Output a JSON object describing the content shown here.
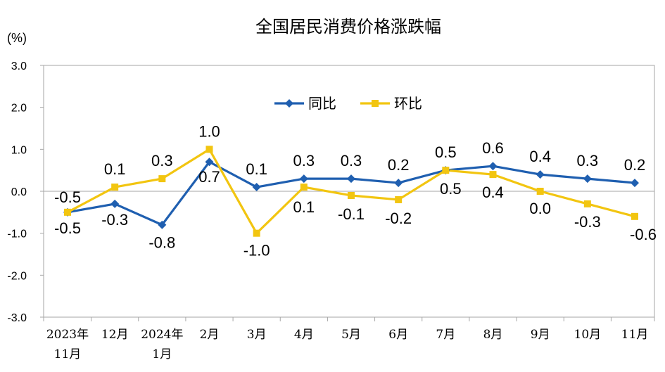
{
  "chart_data": {
    "type": "line",
    "title": "全国居民消费价格涨跌幅",
    "ylabel": "(%)",
    "xlabel": "",
    "ylim": [
      -3.0,
      3.0
    ],
    "yticks": [
      "3.0",
      "2.0",
      "1.0",
      "0.0",
      "-1.0",
      "-2.0",
      "-3.0"
    ],
    "categories": [
      [
        "2023年",
        "11月"
      ],
      [
        "12月"
      ],
      [
        "2024年",
        "1月"
      ],
      [
        "2月"
      ],
      [
        "3月"
      ],
      [
        "4月"
      ],
      [
        "5月"
      ],
      [
        "6月"
      ],
      [
        "7月"
      ],
      [
        "8月"
      ],
      [
        "9月"
      ],
      [
        "10月"
      ],
      [
        "11月"
      ]
    ],
    "series": [
      {
        "name": "同比",
        "color": "#1F5FB0",
        "marker": "diamond",
        "values": [
          -0.5,
          -0.3,
          -0.8,
          0.7,
          0.1,
          0.3,
          0.3,
          0.2,
          0.5,
          0.6,
          0.4,
          0.3,
          0.2
        ],
        "labels": [
          "-0.5",
          "-0.3",
          "-0.8",
          "0.7",
          "0.1",
          "0.3",
          "0.3",
          "0.2",
          "0.5",
          "0.6",
          "0.4",
          "0.3",
          "0.2"
        ]
      },
      {
        "name": "环比",
        "color": "#F2C510",
        "marker": "square",
        "values": [
          -0.5,
          0.1,
          0.3,
          1.0,
          -1.0,
          0.1,
          -0.1,
          -0.2,
          0.5,
          0.4,
          0.0,
          -0.3,
          -0.6
        ],
        "labels": [
          "-0.5",
          "0.1",
          "0.3",
          "1.0",
          "-1.0",
          "0.1",
          "-0.1",
          "-0.2",
          "0.5",
          "0.4",
          "0.0",
          "-0.3",
          "-0.6"
        ]
      }
    ],
    "legend_position": "top-center",
    "grid": false
  }
}
